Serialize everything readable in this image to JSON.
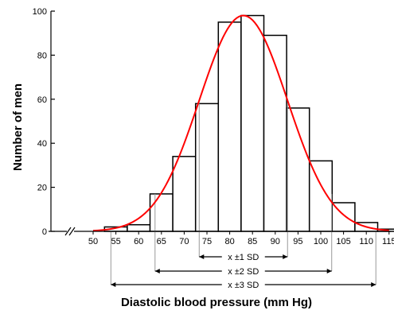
{
  "chart_data": {
    "type": "bar",
    "title": "",
    "xlabel": "Diastolic blood pressure (mm Hg)",
    "ylabel": "Number of men",
    "ylim": [
      0,
      100
    ],
    "xlim": [
      50,
      115
    ],
    "y_ticks": [
      0,
      20,
      40,
      60,
      80,
      100
    ],
    "x_ticks": [
      50,
      55,
      60,
      65,
      70,
      75,
      80,
      85,
      90,
      95,
      100,
      105,
      110,
      115
    ],
    "bin_width": 5,
    "bins": [
      {
        "x0": 52.5,
        "value": 2
      },
      {
        "x0": 57.5,
        "value": 3
      },
      {
        "x0": 62.5,
        "value": 17
      },
      {
        "x0": 67.5,
        "value": 34
      },
      {
        "x0": 72.5,
        "value": 58
      },
      {
        "x0": 77.5,
        "value": 95
      },
      {
        "x0": 82.5,
        "value": 98
      },
      {
        "x0": 87.5,
        "value": 89
      },
      {
        "x0": 92.5,
        "value": 56
      },
      {
        "x0": 97.5,
        "value": 32
      },
      {
        "x0": 102.5,
        "value": 13
      },
      {
        "x0": 107.5,
        "value": 4
      },
      {
        "x0": 112.5,
        "value": 1
      }
    ],
    "fitted_curve": {
      "type": "normal",
      "mean": 83,
      "sd": 9.7,
      "peak": 98,
      "color": "#ff0000"
    },
    "sd_ranges": [
      {
        "label": "x ±1 SD",
        "low": 73.3,
        "high": 92.7
      },
      {
        "label": "x ±2 SD",
        "low": 63.6,
        "high": 102.4
      },
      {
        "label": "x ±3 SD",
        "low": 53.9,
        "high": 112.1
      }
    ],
    "axis_break": true,
    "grid": false,
    "colors": {
      "bars": "#000000",
      "bar_fill": "#ffffff",
      "curve": "#ff0000",
      "guide_lines": "#999999"
    }
  }
}
